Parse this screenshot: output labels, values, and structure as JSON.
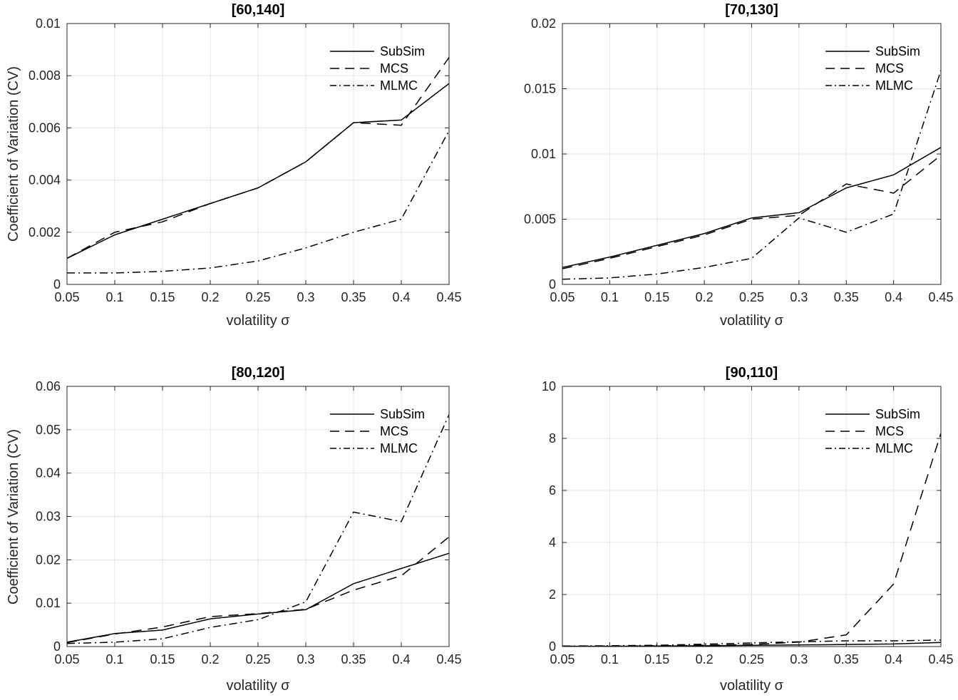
{
  "figure": {
    "background": "#ffffff",
    "colors": {
      "line": "#000000",
      "grid": "#e6e6e6",
      "axis": "#262626",
      "tick_text": "#262626",
      "label_text": "#262626",
      "title_text": "#000000"
    }
  },
  "chart_data": [
    {
      "type": "line",
      "title": "[60,140]",
      "xlabel": "volatility σ",
      "ylabel": "Coefficient of Variation (CV)",
      "grid": true,
      "legend_position": "top-right",
      "xlim": [
        0.05,
        0.45
      ],
      "ylim": [
        0,
        0.01
      ],
      "x": [
        0.05,
        0.1,
        0.15,
        0.2,
        0.25,
        0.3,
        0.35,
        0.4,
        0.45
      ],
      "xtick_labels": [
        "0.05",
        "0.1",
        "0.15",
        "0.2",
        "0.25",
        "0.3",
        "0.35",
        "0.4",
        "0.45"
      ],
      "yticks": [
        0,
        0.002,
        0.004,
        0.006,
        0.008,
        0.01
      ],
      "ytick_labels": [
        "0",
        "0.002",
        "0.004",
        "0.006",
        "0.008",
        "0.01"
      ],
      "series": [
        {
          "name": "SubSim",
          "style": "solid",
          "values": [
            0.001,
            0.0019,
            0.0025,
            0.0031,
            0.0037,
            0.0047,
            0.0062,
            0.0063,
            0.0077
          ]
        },
        {
          "name": "MCS",
          "style": "dashed",
          "values": [
            0.001,
            0.002,
            0.0024,
            0.0031,
            0.0037,
            0.0047,
            0.0062,
            0.0061,
            0.0087
          ]
        },
        {
          "name": "MLMC",
          "style": "dashdot",
          "values": [
            0.00044,
            0.00044,
            0.0005,
            0.00063,
            0.0009,
            0.0014,
            0.002,
            0.0025,
            0.0059
          ]
        }
      ]
    },
    {
      "type": "line",
      "title": "[70,130]",
      "xlabel": "volatility σ",
      "grid": true,
      "legend_position": "top-right",
      "xlim": [
        0.05,
        0.45
      ],
      "ylim": [
        0,
        0.02
      ],
      "x": [
        0.05,
        0.1,
        0.15,
        0.2,
        0.25,
        0.3,
        0.35,
        0.4,
        0.45
      ],
      "xtick_labels": [
        "0.05",
        "0.1",
        "0.15",
        "0.2",
        "0.25",
        "0.3",
        "0.35",
        "0.4",
        "0.45"
      ],
      "yticks": [
        0,
        0.005,
        0.01,
        0.015,
        0.02
      ],
      "ytick_labels": [
        "0",
        "0.005",
        "0.01",
        "0.015",
        "0.02"
      ],
      "series": [
        {
          "name": "SubSim",
          "style": "solid",
          "values": [
            0.0013,
            0.0021,
            0.003,
            0.0039,
            0.0051,
            0.0055,
            0.0074,
            0.0084,
            0.0105
          ]
        },
        {
          "name": "MCS",
          "style": "dashed",
          "values": [
            0.0012,
            0.002,
            0.0029,
            0.0038,
            0.005,
            0.0053,
            0.0077,
            0.007,
            0.0099
          ]
        },
        {
          "name": "MLMC",
          "style": "dashdot",
          "values": [
            0.0004,
            0.0005,
            0.0008,
            0.0013,
            0.002,
            0.0051,
            0.004,
            0.0054,
            0.0164
          ]
        }
      ]
    },
    {
      "type": "line",
      "title": "[80,120]",
      "xlabel": "volatility σ",
      "ylabel": "Coefficient of Variation (CV)",
      "grid": true,
      "legend_position": "top-right",
      "xlim": [
        0.05,
        0.45
      ],
      "ylim": [
        0,
        0.06
      ],
      "x": [
        0.05,
        0.1,
        0.15,
        0.2,
        0.25,
        0.3,
        0.35,
        0.4,
        0.45
      ],
      "xtick_labels": [
        "0.05",
        "0.1",
        "0.15",
        "0.2",
        "0.25",
        "0.3",
        "0.35",
        "0.4",
        "0.45"
      ],
      "yticks": [
        0,
        0.01,
        0.02,
        0.03,
        0.04,
        0.05,
        0.06
      ],
      "ytick_labels": [
        "0",
        "0.01",
        "0.02",
        "0.03",
        "0.04",
        "0.05",
        "0.06"
      ],
      "series": [
        {
          "name": "SubSim",
          "style": "solid",
          "values": [
            0.001,
            0.003,
            0.0038,
            0.0064,
            0.0075,
            0.0085,
            0.0145,
            0.018,
            0.0215
          ]
        },
        {
          "name": "MCS",
          "style": "dashed",
          "values": [
            0.0009,
            0.0029,
            0.0045,
            0.0069,
            0.0076,
            0.0086,
            0.013,
            0.0163,
            0.0253
          ]
        },
        {
          "name": "MLMC",
          "style": "dashdot",
          "values": [
            0.0007,
            0.001,
            0.0018,
            0.0044,
            0.0062,
            0.0103,
            0.031,
            0.0288,
            0.0535
          ]
        }
      ]
    },
    {
      "type": "line",
      "title": "[90,110]",
      "xlabel": "volatility σ",
      "grid": true,
      "legend_position": "top-right",
      "xlim": [
        0.05,
        0.45
      ],
      "ylim": [
        0,
        10
      ],
      "x": [
        0.05,
        0.1,
        0.15,
        0.2,
        0.25,
        0.3,
        0.35,
        0.4,
        0.45
      ],
      "xtick_labels": [
        "0.05",
        "0.1",
        "0.15",
        "0.2",
        "0.25",
        "0.3",
        "0.35",
        "0.4",
        "0.45"
      ],
      "yticks": [
        0,
        2,
        4,
        6,
        8,
        10
      ],
      "ytick_labels": [
        "0",
        "2",
        "4",
        "6",
        "8",
        "10"
      ],
      "series": [
        {
          "name": "SubSim",
          "style": "solid",
          "values": [
            0.01,
            0.01,
            0.02,
            0.03,
            0.05,
            0.06,
            0.08,
            0.1,
            0.16
          ]
        },
        {
          "name": "MCS",
          "style": "dashed",
          "values": [
            0.01,
            0.02,
            0.03,
            0.05,
            0.08,
            0.17,
            0.45,
            2.4,
            8.2
          ]
        },
        {
          "name": "MLMC",
          "style": "dashdot",
          "values": [
            0.02,
            0.03,
            0.05,
            0.09,
            0.14,
            0.18,
            0.22,
            0.22,
            0.25
          ]
        }
      ]
    }
  ]
}
